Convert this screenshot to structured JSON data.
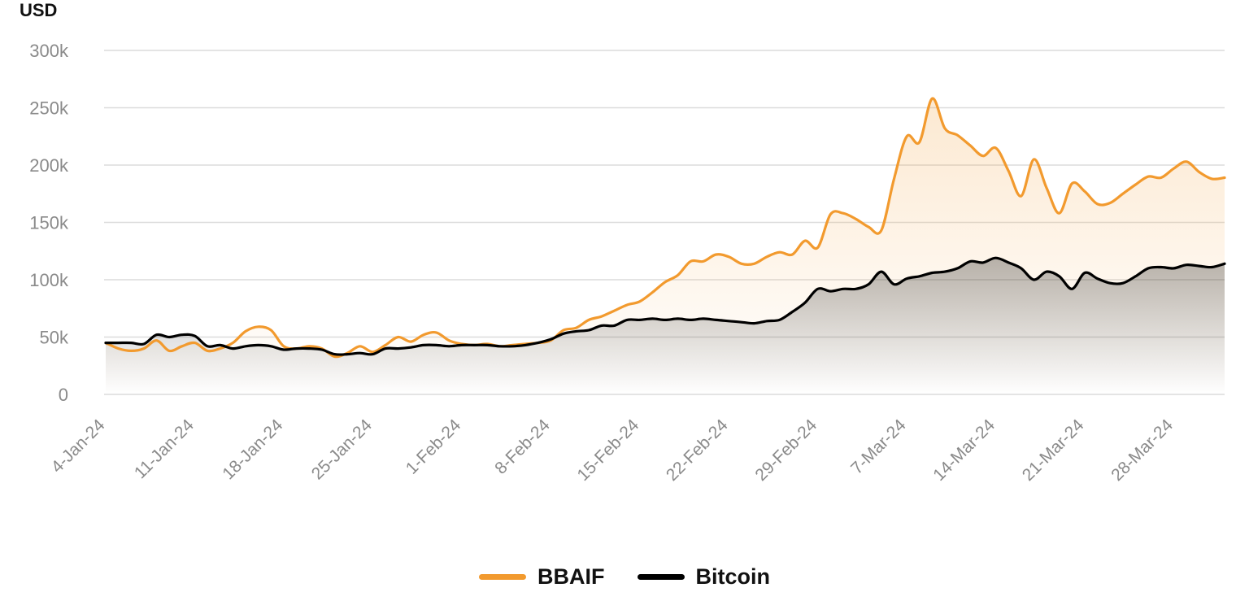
{
  "chart_data": {
    "type": "area",
    "ylabel": "USD",
    "ylim": [
      0,
      300000
    ],
    "ytick_values": [
      0,
      50000,
      100000,
      150000,
      200000,
      250000,
      300000
    ],
    "ytick_labels": [
      "0",
      "50k",
      "100k",
      "150k",
      "200k",
      "250k",
      "300k"
    ],
    "xlim": [
      "2024-01-04",
      "2024-04-01"
    ],
    "xtick_labels": [
      "4-Jan-24",
      "11-Jan-24",
      "18-Jan-24",
      "25-Jan-24",
      "1-Feb-24",
      "8-Feb-24",
      "15-Feb-24",
      "22-Feb-24",
      "29-Feb-24",
      "7-Mar-24",
      "14-Mar-24",
      "21-Mar-24",
      "28-Mar-24"
    ],
    "xtick_dates": [
      "2024-01-04",
      "2024-01-11",
      "2024-01-18",
      "2024-01-25",
      "2024-02-01",
      "2024-02-08",
      "2024-02-15",
      "2024-02-22",
      "2024-02-29",
      "2024-03-07",
      "2024-03-14",
      "2024-03-21",
      "2024-03-28"
    ],
    "grid": true,
    "legend_position": "bottom-center",
    "series": [
      {
        "name": "BBAIF",
        "color": "#F29A2E",
        "points": [
          [
            "2024-01-04",
            45000
          ],
          [
            "2024-01-05",
            40000
          ],
          [
            "2024-01-06",
            38000
          ],
          [
            "2024-01-07",
            40000
          ],
          [
            "2024-01-08",
            47000
          ],
          [
            "2024-01-09",
            38000
          ],
          [
            "2024-01-10",
            42000
          ],
          [
            "2024-01-11",
            45000
          ],
          [
            "2024-01-12",
            38000
          ],
          [
            "2024-01-13",
            40000
          ],
          [
            "2024-01-14",
            45000
          ],
          [
            "2024-01-15",
            55000
          ],
          [
            "2024-01-16",
            59000
          ],
          [
            "2024-01-17",
            56000
          ],
          [
            "2024-01-18",
            42000
          ],
          [
            "2024-01-19",
            40000
          ],
          [
            "2024-01-20",
            42000
          ],
          [
            "2024-01-21",
            40000
          ],
          [
            "2024-01-22",
            33000
          ],
          [
            "2024-01-23",
            36000
          ],
          [
            "2024-01-24",
            42000
          ],
          [
            "2024-01-25",
            37000
          ],
          [
            "2024-01-26",
            43000
          ],
          [
            "2024-01-27",
            50000
          ],
          [
            "2024-01-28",
            46000
          ],
          [
            "2024-01-29",
            52000
          ],
          [
            "2024-01-30",
            54000
          ],
          [
            "2024-01-31",
            47000
          ],
          [
            "2024-02-01",
            44000
          ],
          [
            "2024-02-02",
            43000
          ],
          [
            "2024-02-03",
            44000
          ],
          [
            "2024-02-04",
            42000
          ],
          [
            "2024-02-05",
            43000
          ],
          [
            "2024-02-06",
            44000
          ],
          [
            "2024-02-07",
            45000
          ],
          [
            "2024-02-08",
            47000
          ],
          [
            "2024-02-09",
            56000
          ],
          [
            "2024-02-10",
            58000
          ],
          [
            "2024-02-11",
            65000
          ],
          [
            "2024-02-12",
            68000
          ],
          [
            "2024-02-13",
            73000
          ],
          [
            "2024-02-14",
            78000
          ],
          [
            "2024-02-15",
            81000
          ],
          [
            "2024-02-16",
            89000
          ],
          [
            "2024-02-17",
            98000
          ],
          [
            "2024-02-18",
            104000
          ],
          [
            "2024-02-19",
            116000
          ],
          [
            "2024-02-20",
            116000
          ],
          [
            "2024-02-21",
            122000
          ],
          [
            "2024-02-22",
            120000
          ],
          [
            "2024-02-23",
            114000
          ],
          [
            "2024-02-24",
            114000
          ],
          [
            "2024-02-25",
            120000
          ],
          [
            "2024-02-26",
            124000
          ],
          [
            "2024-02-27",
            122000
          ],
          [
            "2024-02-28",
            134000
          ],
          [
            "2024-02-29",
            128000
          ],
          [
            "2024-03-01",
            157000
          ],
          [
            "2024-03-02",
            158000
          ],
          [
            "2024-03-03",
            153000
          ],
          [
            "2024-03-04",
            146000
          ],
          [
            "2024-03-05",
            143000
          ],
          [
            "2024-03-06",
            188000
          ],
          [
            "2024-03-07",
            225000
          ],
          [
            "2024-03-08",
            220000
          ],
          [
            "2024-03-09",
            258000
          ],
          [
            "2024-03-10",
            232000
          ],
          [
            "2024-03-11",
            226000
          ],
          [
            "2024-03-12",
            217000
          ],
          [
            "2024-03-13",
            208000
          ],
          [
            "2024-03-14",
            215000
          ],
          [
            "2024-03-15",
            195000
          ],
          [
            "2024-03-16",
            173000
          ],
          [
            "2024-03-17",
            205000
          ],
          [
            "2024-03-18",
            180000
          ],
          [
            "2024-03-19",
            158000
          ],
          [
            "2024-03-20",
            184000
          ],
          [
            "2024-03-21",
            177000
          ],
          [
            "2024-03-22",
            166000
          ],
          [
            "2024-03-23",
            167000
          ],
          [
            "2024-03-24",
            175000
          ],
          [
            "2024-03-25",
            183000
          ],
          [
            "2024-03-26",
            190000
          ],
          [
            "2024-03-27",
            189000
          ],
          [
            "2024-03-28",
            197000
          ],
          [
            "2024-03-29",
            203000
          ],
          [
            "2024-03-30",
            194000
          ],
          [
            "2024-03-31",
            188000
          ],
          [
            "2024-04-01",
            189000
          ]
        ]
      },
      {
        "name": "Bitcoin",
        "color": "#000000",
        "points": [
          [
            "2024-01-04",
            45000
          ],
          [
            "2024-01-05",
            45000
          ],
          [
            "2024-01-06",
            45000
          ],
          [
            "2024-01-07",
            44000
          ],
          [
            "2024-01-08",
            52000
          ],
          [
            "2024-01-09",
            50000
          ],
          [
            "2024-01-10",
            52000
          ],
          [
            "2024-01-11",
            51000
          ],
          [
            "2024-01-12",
            42000
          ],
          [
            "2024-01-13",
            43000
          ],
          [
            "2024-01-14",
            40000
          ],
          [
            "2024-01-15",
            42000
          ],
          [
            "2024-01-16",
            43000
          ],
          [
            "2024-01-17",
            42000
          ],
          [
            "2024-01-18",
            39000
          ],
          [
            "2024-01-19",
            40000
          ],
          [
            "2024-01-20",
            40000
          ],
          [
            "2024-01-21",
            39000
          ],
          [
            "2024-01-22",
            35000
          ],
          [
            "2024-01-23",
            35000
          ],
          [
            "2024-01-24",
            36000
          ],
          [
            "2024-01-25",
            35000
          ],
          [
            "2024-01-26",
            40000
          ],
          [
            "2024-01-27",
            40000
          ],
          [
            "2024-01-28",
            41000
          ],
          [
            "2024-01-29",
            43000
          ],
          [
            "2024-01-30",
            43000
          ],
          [
            "2024-01-31",
            42000
          ],
          [
            "2024-02-01",
            43000
          ],
          [
            "2024-02-02",
            43000
          ],
          [
            "2024-02-03",
            43000
          ],
          [
            "2024-02-04",
            42000
          ],
          [
            "2024-02-05",
            42000
          ],
          [
            "2024-02-06",
            43000
          ],
          [
            "2024-02-07",
            45000
          ],
          [
            "2024-02-08",
            48000
          ],
          [
            "2024-02-09",
            53000
          ],
          [
            "2024-02-10",
            55000
          ],
          [
            "2024-02-11",
            56000
          ],
          [
            "2024-02-12",
            60000
          ],
          [
            "2024-02-13",
            60000
          ],
          [
            "2024-02-14",
            65000
          ],
          [
            "2024-02-15",
            65000
          ],
          [
            "2024-02-16",
            66000
          ],
          [
            "2024-02-17",
            65000
          ],
          [
            "2024-02-18",
            66000
          ],
          [
            "2024-02-19",
            65000
          ],
          [
            "2024-02-20",
            66000
          ],
          [
            "2024-02-21",
            65000
          ],
          [
            "2024-02-22",
            64000
          ],
          [
            "2024-02-23",
            63000
          ],
          [
            "2024-02-24",
            62000
          ],
          [
            "2024-02-25",
            64000
          ],
          [
            "2024-02-26",
            65000
          ],
          [
            "2024-02-27",
            72000
          ],
          [
            "2024-02-28",
            80000
          ],
          [
            "2024-02-29",
            92000
          ],
          [
            "2024-03-01",
            90000
          ],
          [
            "2024-03-02",
            92000
          ],
          [
            "2024-03-03",
            92000
          ],
          [
            "2024-03-04",
            96000
          ],
          [
            "2024-03-05",
            107000
          ],
          [
            "2024-03-06",
            96000
          ],
          [
            "2024-03-07",
            101000
          ],
          [
            "2024-03-08",
            103000
          ],
          [
            "2024-03-09",
            106000
          ],
          [
            "2024-03-10",
            107000
          ],
          [
            "2024-03-11",
            110000
          ],
          [
            "2024-03-12",
            116000
          ],
          [
            "2024-03-13",
            115000
          ],
          [
            "2024-03-14",
            119000
          ],
          [
            "2024-03-15",
            115000
          ],
          [
            "2024-03-16",
            110000
          ],
          [
            "2024-03-17",
            100000
          ],
          [
            "2024-03-18",
            107000
          ],
          [
            "2024-03-19",
            103000
          ],
          [
            "2024-03-20",
            92000
          ],
          [
            "2024-03-21",
            106000
          ],
          [
            "2024-03-22",
            101000
          ],
          [
            "2024-03-23",
            97000
          ],
          [
            "2024-03-24",
            97000
          ],
          [
            "2024-03-25",
            103000
          ],
          [
            "2024-03-26",
            110000
          ],
          [
            "2024-03-27",
            111000
          ],
          [
            "2024-03-28",
            110000
          ],
          [
            "2024-03-29",
            113000
          ],
          [
            "2024-03-30",
            112000
          ],
          [
            "2024-03-31",
            111000
          ],
          [
            "2024-04-01",
            114000
          ]
        ]
      }
    ]
  }
}
